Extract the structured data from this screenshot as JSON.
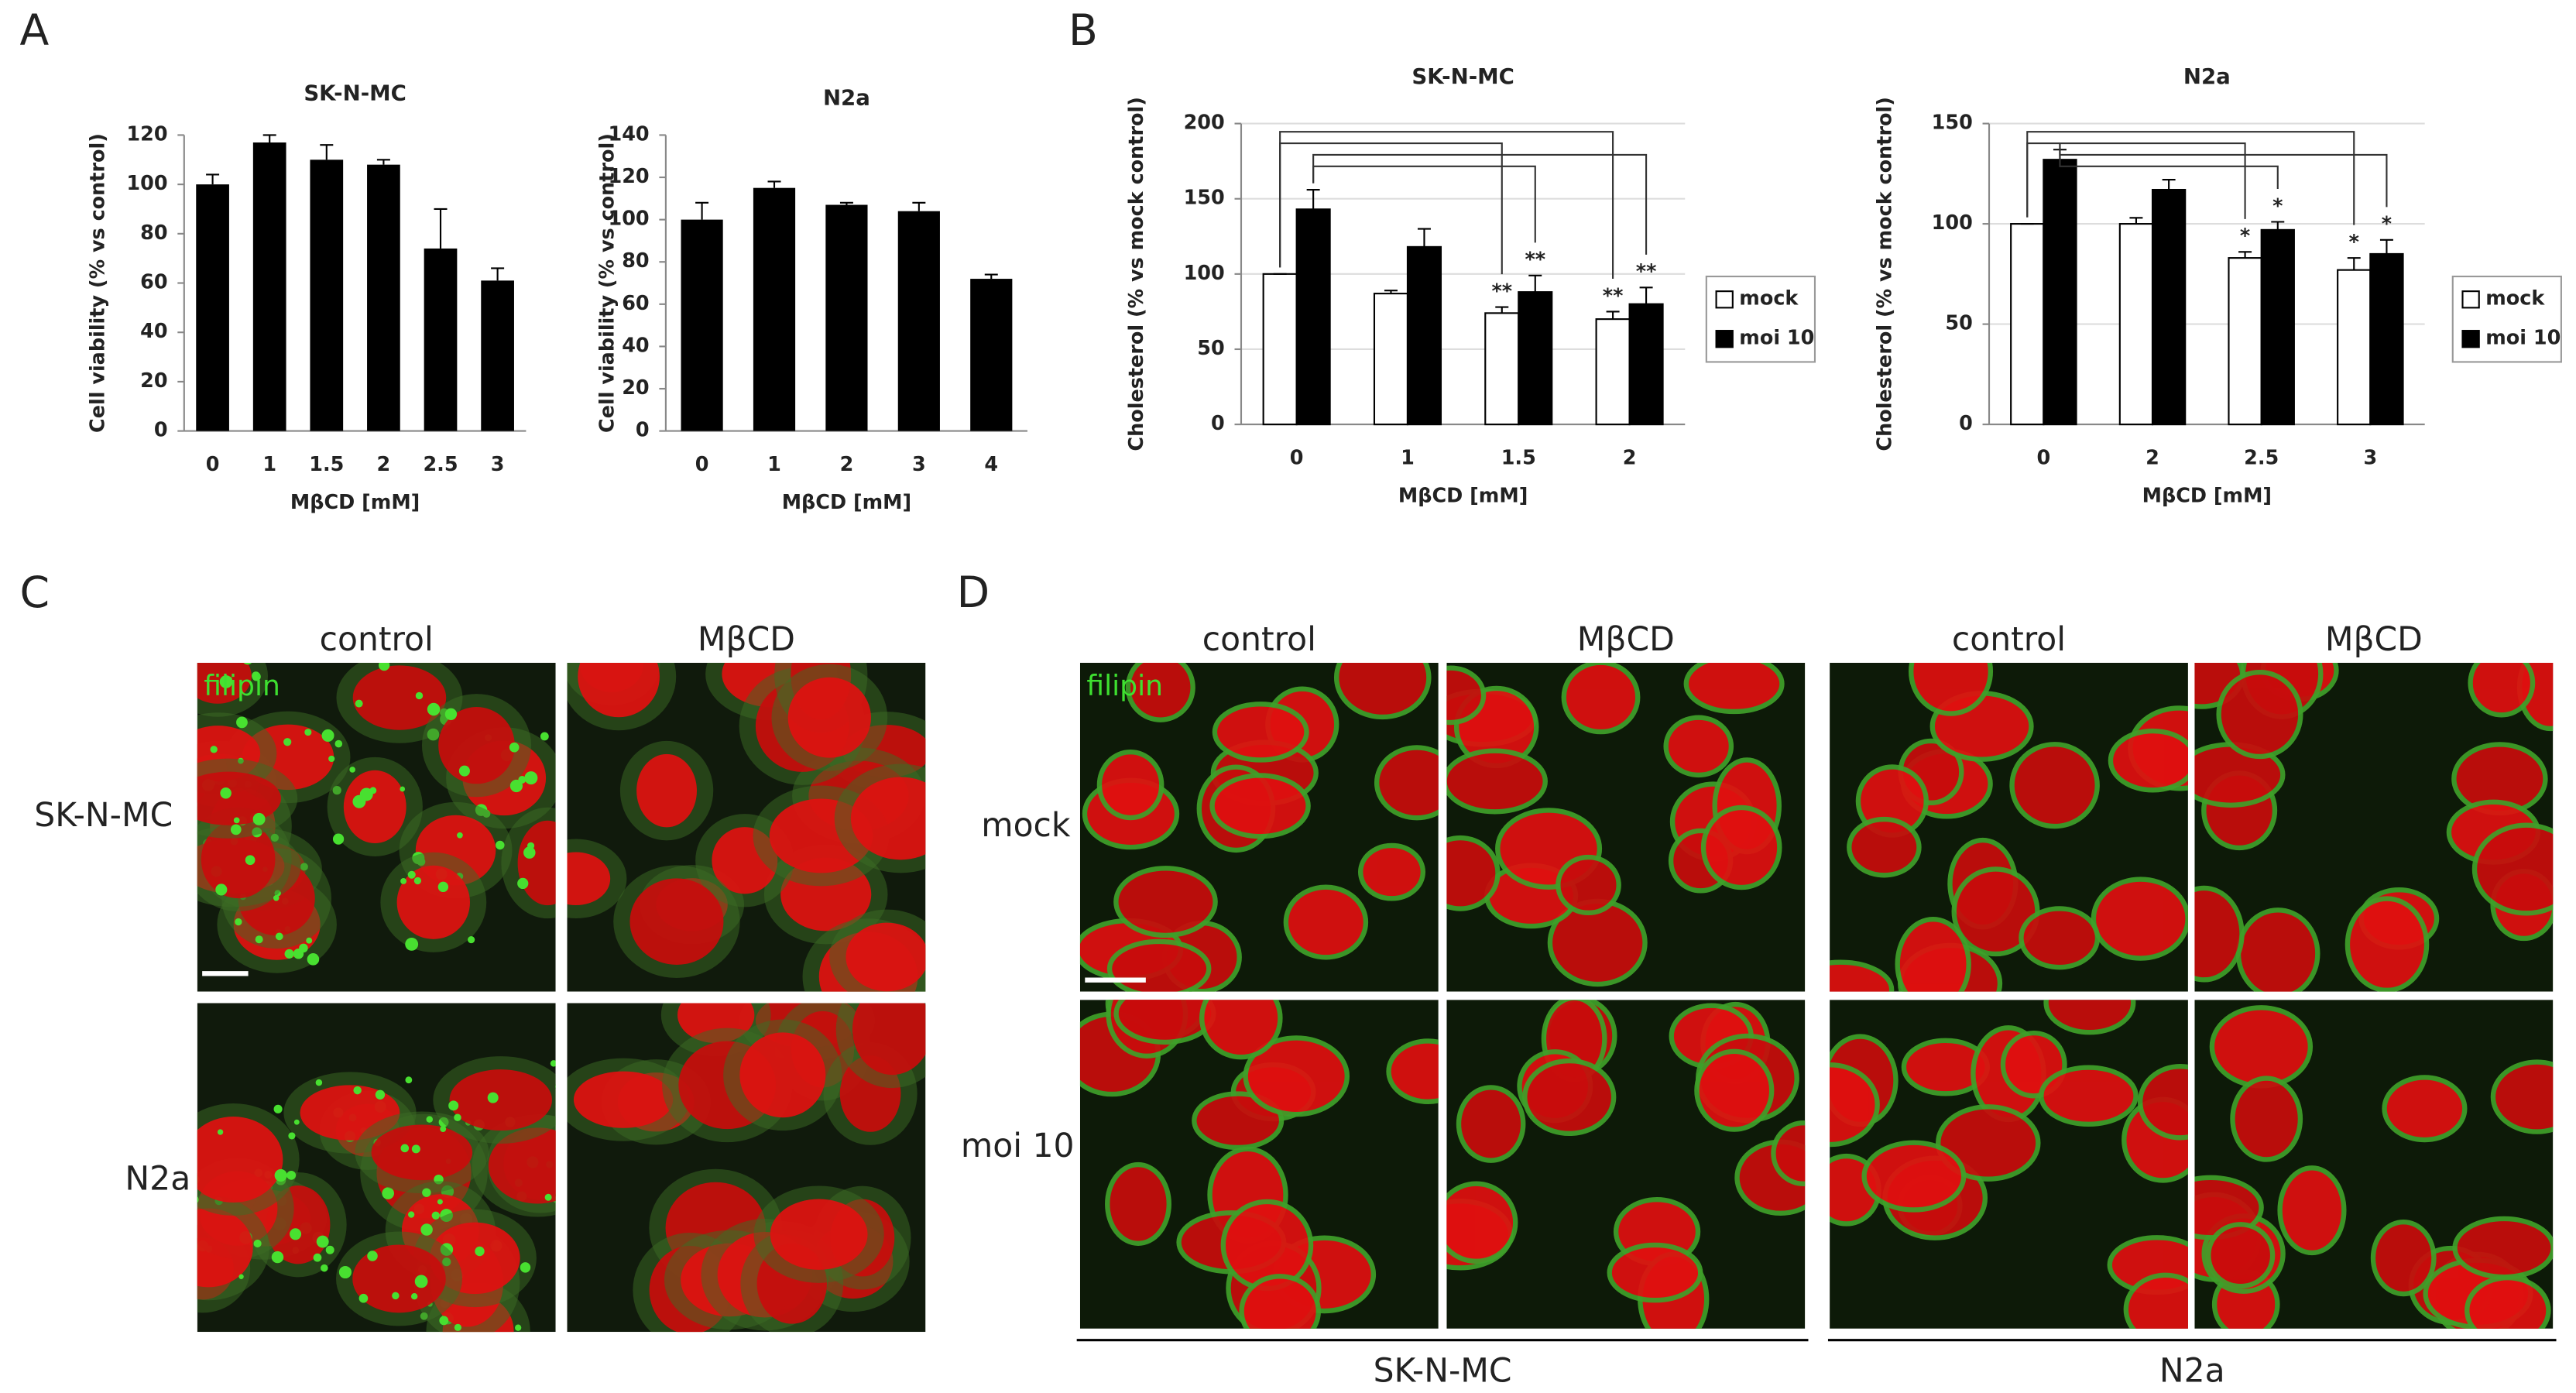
{
  "panel_labels": [
    "A",
    "B",
    "C",
    "D"
  ],
  "chart_data": [
    {
      "type": "bar",
      "title": "SK-N-MC",
      "x_label": "MβCD [mM]",
      "y_label": "Cell viability (% vs control)",
      "categories": [
        "0",
        "1",
        "1.5",
        "2",
        "2.5",
        "3"
      ],
      "values": [
        100,
        117,
        110,
        108,
        74,
        61
      ],
      "errors": [
        4,
        3,
        6,
        2,
        16,
        5
      ],
      "color": "#000000",
      "ylim": [
        0,
        120
      ],
      "yticks": [
        0,
        20,
        40,
        60,
        80,
        100,
        120
      ],
      "grid": false
    },
    {
      "type": "bar",
      "title": "N2a",
      "x_label": "MβCD [mM]",
      "y_label": "Cell viability (% vs control)",
      "categories": [
        "0",
        "1",
        "2",
        "3",
        "4"
      ],
      "values": [
        100,
        115,
        107,
        104,
        72
      ],
      "errors": [
        8,
        3,
        1,
        4,
        2
      ],
      "color": "#000000",
      "ylim": [
        0,
        140
      ],
      "yticks": [
        0,
        20,
        40,
        60,
        80,
        100,
        120,
        140
      ],
      "grid": false
    },
    {
      "type": "grouped-bar",
      "title": "SK-N-MC",
      "x_label": "MβCD [mM]",
      "y_label": "Cholesterol (% vs mock control)",
      "categories": [
        "0",
        "1",
        "1.5",
        "2"
      ],
      "series": [
        {
          "name": "mock",
          "color": "#ffffff",
          "values": [
            100,
            87,
            74,
            70
          ],
          "errors": [
            0,
            2,
            4,
            5
          ],
          "annotations": [
            null,
            null,
            "**",
            "**"
          ]
        },
        {
          "name": "moi 10",
          "color": "#000000",
          "values": [
            143,
            118,
            88,
            80
          ],
          "errors": [
            13,
            12,
            11,
            11
          ],
          "annotations": [
            null,
            null,
            "**",
            "**"
          ]
        }
      ],
      "ylim": [
        0,
        200
      ],
      "yticks": [
        0,
        50,
        100,
        150,
        200
      ],
      "grid": true,
      "legend": "right"
    },
    {
      "type": "grouped-bar",
      "title": "N2a",
      "x_label": "MβCD [mM]",
      "y_label": "Cholesterol (% vs mock control)",
      "categories": [
        "0",
        "2",
        "2.5",
        "3"
      ],
      "series": [
        {
          "name": "mock",
          "color": "#ffffff",
          "values": [
            100,
            100,
            83,
            77
          ],
          "errors": [
            0,
            3,
            3,
            6
          ],
          "annotations": [
            null,
            null,
            "*",
            "*"
          ]
        },
        {
          "name": "moi 10",
          "color": "#000000",
          "values": [
            132,
            117,
            97,
            85
          ],
          "errors": [
            5,
            5,
            4,
            7
          ],
          "annotations": [
            null,
            null,
            "*",
            "*"
          ]
        }
      ],
      "ylim": [
        0,
        150
      ],
      "yticks": [
        0,
        50,
        100,
        150
      ],
      "grid": true,
      "legend": "right"
    }
  ],
  "micrographs_c": {
    "columns": [
      "control",
      "MβCD"
    ],
    "rows": [
      "SK-N-MC",
      "N2a"
    ],
    "stain": "filipin"
  },
  "micrographs_d": {
    "columns": [
      "control",
      "MβCD",
      "control",
      "MβCD"
    ],
    "rows": [
      "mock",
      "moi 10"
    ],
    "stain": "filipin",
    "groups": [
      "SK-N-MC",
      "N2a"
    ]
  }
}
